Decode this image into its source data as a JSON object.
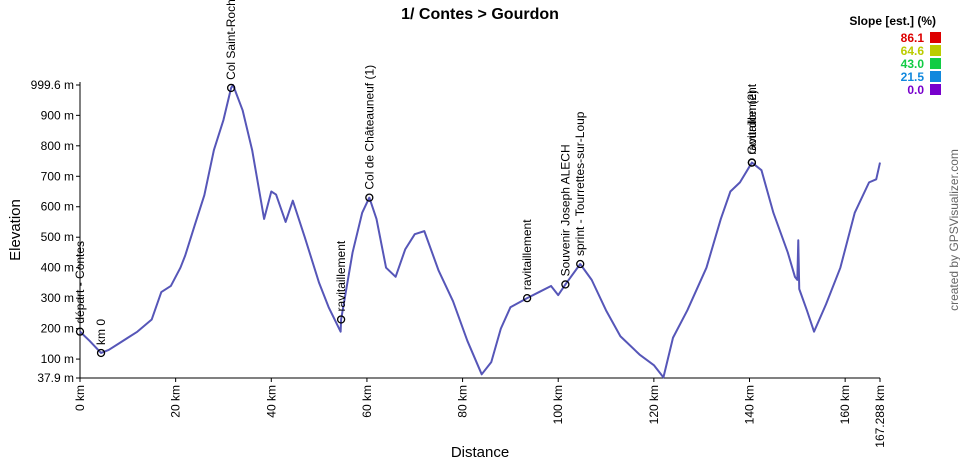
{
  "chart_data": {
    "type": "line",
    "title": "1/ Contes > Gourdon",
    "x_label": "Distance",
    "y_label": "Elevation",
    "credit": "created by GPSVisualizer.com",
    "x": [
      0,
      2,
      4.4,
      6,
      8,
      10,
      12,
      15,
      17,
      19,
      21,
      22,
      24,
      26,
      28,
      30,
      31.6,
      32,
      34,
      36,
      38,
      38.5,
      40,
      41,
      43,
      44.5,
      47,
      50,
      52,
      54.5,
      54.6,
      57,
      59,
      60.5,
      62,
      64,
      66,
      68,
      70,
      72,
      75,
      78,
      81,
      84,
      86,
      88,
      90,
      93.5,
      96,
      98.5,
      100,
      101.5,
      104.6,
      107,
      110,
      113,
      117,
      120,
      122,
      124,
      127,
      131,
      134,
      136,
      138,
      140.5,
      142.5,
      145,
      148,
      149.5,
      150,
      150.2,
      150.4,
      152,
      153.5,
      156,
      159,
      162,
      165,
      166.5,
      167.288
    ],
    "series": [
      {
        "name": "Elevation",
        "color": "#5656b8",
        "values": [
          190,
          160,
          120,
          130,
          150,
          170,
          190,
          230,
          320,
          340,
          400,
          440,
          540,
          638,
          786,
          885,
          990,
          999.6,
          917,
          786,
          605,
          560,
          650,
          640,
          550,
          620,
          500,
          350,
          270,
          190,
          230,
          450,
          580,
          630,
          560,
          400,
          370,
          460,
          510,
          520,
          390,
          290,
          160,
          50,
          90,
          200,
          270,
          300,
          320,
          340,
          310,
          345,
          412,
          360,
          260,
          175,
          115,
          80,
          40,
          170,
          260,
          400,
          560,
          650,
          680,
          745,
          720,
          580,
          450,
          370,
          360,
          490,
          330,
          260,
          190,
          280,
          400,
          580,
          680,
          690,
          745
        ]
      }
    ],
    "waypoints": [
      {
        "label": "départ - Contes",
        "x": 0,
        "y": 190
      },
      {
        "label": "km 0",
        "x": 4.4,
        "y": 120
      },
      {
        "label": "Col Saint-Roch",
        "x": 31.6,
        "y": 990
      },
      {
        "label": "ravitaillement",
        "x": 54.6,
        "y": 230
      },
      {
        "label": "Col de Châteauneuf (1)",
        "x": 60.5,
        "y": 630
      },
      {
        "label": "ravitaillement",
        "x": 93.5,
        "y": 300
      },
      {
        "label": "Souvenir Joseph ALECH",
        "x": 101.5,
        "y": 345
      },
      {
        "label": "sprint - Tourrettes-sur-Loup",
        "x": 104.6,
        "y": 412
      },
      {
        "label": "Gourdon (2)",
        "x": 140.5,
        "y": 745
      },
      {
        "label": "ravitaillement",
        "x": 140.5,
        "y": 745
      }
    ],
    "xlim": [
      0,
      167.288
    ],
    "xticks": [
      {
        "value": 0,
        "label": "0 km"
      },
      {
        "value": 20,
        "label": "20 km"
      },
      {
        "value": 40,
        "label": "40 km"
      },
      {
        "value": 60,
        "label": "60 km"
      },
      {
        "value": 80,
        "label": "80 km"
      },
      {
        "value": 100,
        "label": "100 km"
      },
      {
        "value": 120,
        "label": "120 km"
      },
      {
        "value": 140,
        "label": "140 km"
      },
      {
        "value": 160,
        "label": "160 km"
      },
      {
        "value": 167.288,
        "label": "167.288 km"
      }
    ],
    "ylim": [
      37.9,
      999.6
    ],
    "yticks": [
      {
        "value": 37.9,
        "label": "37.9 m"
      },
      {
        "value": 100,
        "label": "100 m"
      },
      {
        "value": 200,
        "label": "200 m"
      },
      {
        "value": 300,
        "label": "300 m"
      },
      {
        "value": 400,
        "label": "400 m"
      },
      {
        "value": 500,
        "label": "500 m"
      },
      {
        "value": 600,
        "label": "600 m"
      },
      {
        "value": 700,
        "label": "700 m"
      },
      {
        "value": 800,
        "label": "800 m"
      },
      {
        "value": 900,
        "label": "900 m"
      },
      {
        "value": 999.6,
        "label": "999.6 m"
      }
    ],
    "grid": false,
    "colorscale": {
      "title": "Slope [est.] (%)",
      "values": [
        86.1,
        64.6,
        43,
        21.5,
        0
      ],
      "value_labels": [
        "86.1",
        "64.6",
        "43.0",
        "21.5",
        "0.0"
      ],
      "colors": [
        "#dd0000",
        "#bbcc00",
        "#11cc44",
        "#1188dd",
        "#7700cc"
      ]
    }
  }
}
